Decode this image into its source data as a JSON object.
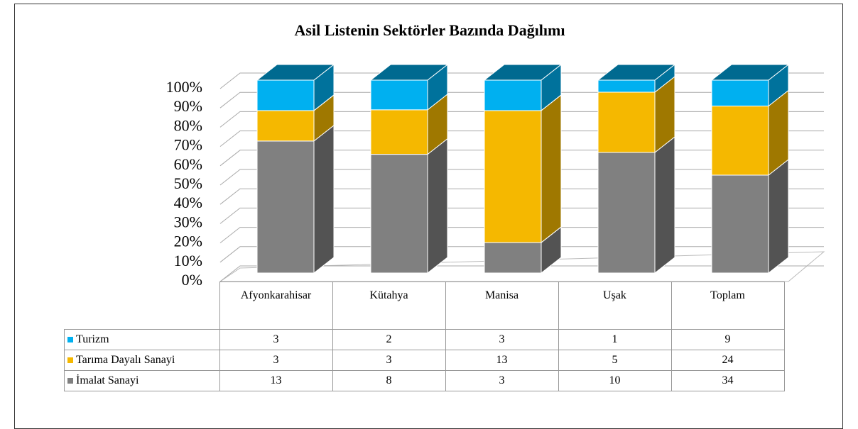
{
  "chart_data": {
    "type": "bar3d_stacked100",
    "title": "Asil Listenin Sektörler Bazında Dağılımı",
    "categories": [
      "Afyonkarahisar",
      "Kütahya",
      "Manisa",
      "Uşak",
      "Toplam"
    ],
    "series": [
      {
        "name": "Turizm",
        "color": "#00b0f0",
        "values": [
          3,
          2,
          3,
          1,
          9
        ]
      },
      {
        "name": "Tarıma Dayalı Sanayi",
        "color": "#f5b800",
        "values": [
          3,
          3,
          13,
          5,
          24
        ]
      },
      {
        "name": "İmalat Sanayi",
        "color": "#808080",
        "values": [
          13,
          8,
          3,
          10,
          34
        ]
      }
    ],
    "ylim": [
      0,
      100
    ],
    "yticks": [
      {
        "value": 0,
        "label": "0%"
      },
      {
        "value": 10,
        "label": "10%"
      },
      {
        "value": 20,
        "label": "20%"
      },
      {
        "value": 30,
        "label": "30%"
      },
      {
        "value": 40,
        "label": "40%"
      },
      {
        "value": 50,
        "label": "50%"
      },
      {
        "value": 60,
        "label": "60%"
      },
      {
        "value": 70,
        "label": "70%"
      },
      {
        "value": 80,
        "label": "80%"
      },
      {
        "value": 90,
        "label": "90%"
      },
      {
        "value": 100,
        "label": "100%"
      }
    ],
    "grid": true
  }
}
